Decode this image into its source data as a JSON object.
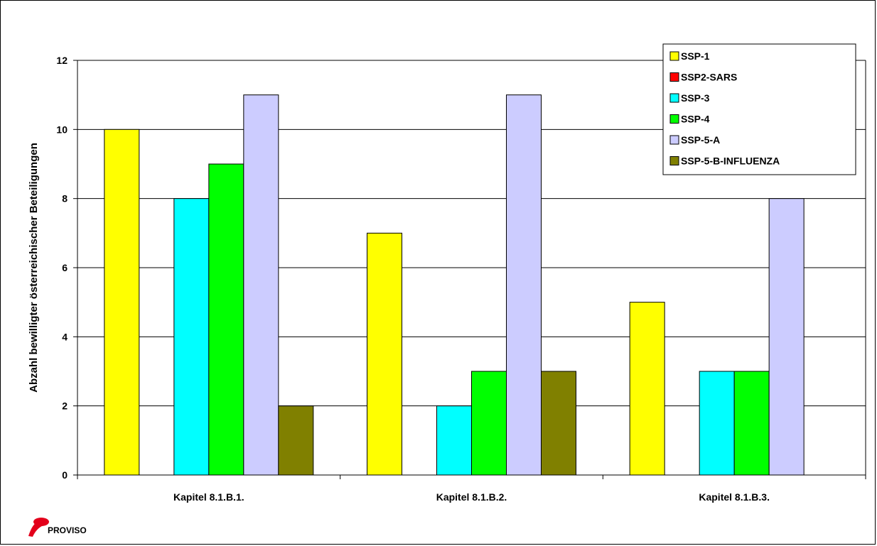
{
  "chart_data": {
    "type": "bar",
    "title": "",
    "xlabel": "",
    "ylabel": "Abzahl bewilligter österreichischer Beteiligungen",
    "ylim": [
      0,
      12
    ],
    "yticks": [
      0,
      2,
      4,
      6,
      8,
      10,
      12
    ],
    "grid": true,
    "legend_position": "top-right",
    "categories": [
      "Kapitel 8.1.B.1.",
      "Kapitel 8.1.B.2.",
      "Kapitel 8.1.B.3."
    ],
    "series": [
      {
        "name": "SSP-1",
        "color": "#ffff00",
        "values": [
          10,
          7,
          5
        ]
      },
      {
        "name": "SSP2-SARS",
        "color": "#ff0000",
        "values": [
          0,
          0,
          0
        ]
      },
      {
        "name": "SSP-3",
        "color": "#00ffff",
        "values": [
          8,
          2,
          3
        ]
      },
      {
        "name": "SSP-4",
        "color": "#00ff00",
        "values": [
          9,
          3,
          3
        ]
      },
      {
        "name": "SSP-5-A",
        "color": "#ccccff",
        "values": [
          11,
          11,
          8
        ]
      },
      {
        "name": "SSP-5-B-INFLUENZA",
        "color": "#808000",
        "values": [
          2,
          3,
          0
        ]
      }
    ]
  },
  "logo": {
    "text": "PROVISO",
    "color": "#e3001b",
    "icon": "proviso-logo-icon"
  }
}
